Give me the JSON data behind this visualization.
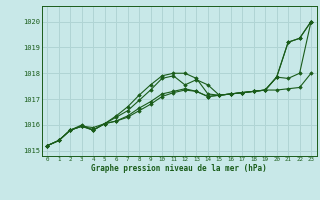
{
  "title": "Graphe pression niveau de la mer (hPa)",
  "background_color": "#c8e8e8",
  "grid_color": "#b0d4d4",
  "line_color": "#1a5c1a",
  "xlim": [
    -0.5,
    23.5
  ],
  "ylim": [
    1014.8,
    1020.6
  ],
  "yticks": [
    1015,
    1016,
    1017,
    1018,
    1019,
    1020
  ],
  "xticks": [
    0,
    1,
    2,
    3,
    4,
    5,
    6,
    7,
    8,
    9,
    10,
    11,
    12,
    13,
    14,
    15,
    16,
    17,
    18,
    19,
    20,
    21,
    22,
    23
  ],
  "series1": [
    1015.2,
    1015.4,
    1015.8,
    1015.95,
    1015.9,
    1016.05,
    1016.35,
    1016.7,
    1017.15,
    1017.55,
    1017.9,
    1018.0,
    1018.0,
    1017.8,
    1017.2,
    1017.15,
    1017.2,
    1017.25,
    1017.3,
    1017.35,
    1017.85,
    1019.2,
    1019.35,
    1020.0
  ],
  "series2": [
    1015.2,
    1015.4,
    1015.8,
    1016.0,
    1015.8,
    1016.05,
    1016.3,
    1016.55,
    1016.95,
    1017.35,
    1017.8,
    1017.9,
    1017.55,
    1017.75,
    1017.55,
    1017.15,
    1017.2,
    1017.25,
    1017.3,
    1017.35,
    1017.85,
    1019.2,
    1019.35,
    1020.0
  ],
  "series3": [
    1015.2,
    1015.4,
    1015.8,
    1015.95,
    1015.8,
    1016.05,
    1016.15,
    1016.35,
    1016.65,
    1016.9,
    1017.2,
    1017.3,
    1017.4,
    1017.3,
    1017.1,
    1017.15,
    1017.2,
    1017.25,
    1017.3,
    1017.35,
    1017.85,
    1017.8,
    1018.0,
    1020.0
  ],
  "series4": [
    1015.2,
    1015.4,
    1015.8,
    1015.95,
    1015.8,
    1016.05,
    1016.15,
    1016.3,
    1016.55,
    1016.8,
    1017.1,
    1017.25,
    1017.35,
    1017.3,
    1017.1,
    1017.15,
    1017.2,
    1017.25,
    1017.3,
    1017.35,
    1017.35,
    1017.4,
    1017.45,
    1018.0
  ]
}
